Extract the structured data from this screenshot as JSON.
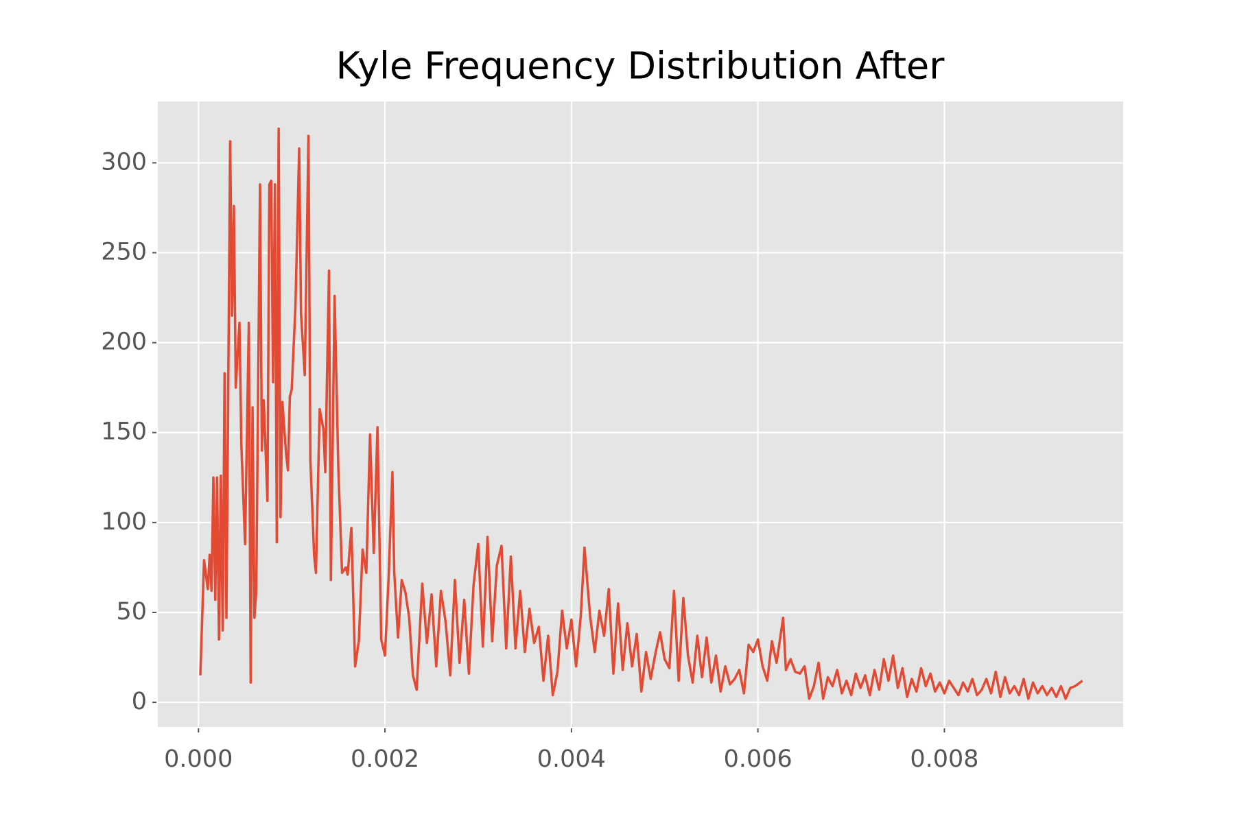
{
  "chart_data": {
    "type": "line",
    "title": "Kyle Frequency Distribution After",
    "color": "#e24a33",
    "background": "#e5e5e5",
    "grid": true,
    "x": [
      2e-05,
      6e-05,
      0.0001,
      0.00012,
      0.00014,
      0.00016,
      0.00018,
      0.0002,
      0.00022,
      0.00024,
      0.00026,
      0.00028,
      0.0003,
      0.00034,
      0.00036,
      0.00038,
      0.0004,
      0.00044,
      0.00046,
      0.0005,
      0.00054,
      0.00056,
      0.00058,
      0.0006,
      0.00062,
      0.00066,
      0.00068,
      0.0007,
      0.00074,
      0.00076,
      0.00078,
      0.0008,
      0.00082,
      0.00084,
      0.00086,
      0.00088,
      0.0009,
      0.00094,
      0.00096,
      0.00098,
      0.001,
      0.00104,
      0.00108,
      0.0011,
      0.00114,
      0.00118,
      0.0012,
      0.00124,
      0.00126,
      0.0013,
      0.00134,
      0.00136,
      0.0014,
      0.00142,
      0.00146,
      0.0015,
      0.00154,
      0.00158,
      0.0016,
      0.00164,
      0.00168,
      0.00172,
      0.00176,
      0.0018,
      0.00184,
      0.00188,
      0.00192,
      0.00196,
      0.002,
      0.00204,
      0.00208,
      0.0021,
      0.00214,
      0.00218,
      0.00222,
      0.00226,
      0.0023,
      0.00234,
      0.0024,
      0.00245,
      0.0025,
      0.00255,
      0.0026,
      0.00265,
      0.0027,
      0.00275,
      0.0028,
      0.00285,
      0.0029,
      0.00295,
      0.003,
      0.00305,
      0.0031,
      0.00315,
      0.0032,
      0.00325,
      0.0033,
      0.00335,
      0.0034,
      0.00345,
      0.0035,
      0.00355,
      0.0036,
      0.00365,
      0.0037,
      0.00375,
      0.0038,
      0.00385,
      0.0039,
      0.00395,
      0.004,
      0.00405,
      0.0041,
      0.00414,
      0.0042,
      0.00425,
      0.0043,
      0.00435,
      0.0044,
      0.00445,
      0.0045,
      0.00455,
      0.0046,
      0.00465,
      0.0047,
      0.00475,
      0.0048,
      0.00485,
      0.0049,
      0.00495,
      0.005,
      0.00505,
      0.0051,
      0.00515,
      0.0052,
      0.00525,
      0.0053,
      0.00535,
      0.0054,
      0.00545,
      0.0055,
      0.00555,
      0.0056,
      0.00565,
      0.0057,
      0.00575,
      0.0058,
      0.00585,
      0.0059,
      0.00595,
      0.006,
      0.00605,
      0.0061,
      0.00615,
      0.0062,
      0.00627,
      0.0063,
      0.00635,
      0.0064,
      0.00645,
      0.0065,
      0.00655,
      0.0066,
      0.00665,
      0.0067,
      0.00675,
      0.0068,
      0.00685,
      0.0069,
      0.00695,
      0.007,
      0.00705,
      0.0071,
      0.00715,
      0.0072,
      0.00725,
      0.0073,
      0.00735,
      0.0074,
      0.00745,
      0.0075,
      0.00755,
      0.0076,
      0.00765,
      0.0077,
      0.00775,
      0.0078,
      0.00785,
      0.0079,
      0.00795,
      0.008,
      0.00805,
      0.0081,
      0.00815,
      0.0082,
      0.00825,
      0.0083,
      0.00835,
      0.0084,
      0.00845,
      0.0085,
      0.00855,
      0.0086,
      0.00865,
      0.0087,
      0.00875,
      0.0088,
      0.00885,
      0.0089,
      0.00895,
      0.009,
      0.00905,
      0.0091,
      0.00915,
      0.0092,
      0.00925,
      0.0093,
      0.00935,
      0.0094,
      0.00948
    ],
    "values": [
      15,
      79,
      63,
      82,
      62,
      125,
      57,
      125,
      35,
      126,
      40,
      183,
      47,
      312,
      215,
      276,
      175,
      211,
      143,
      88,
      211,
      11,
      164,
      47,
      62,
      288,
      140,
      168,
      112,
      288,
      290,
      178,
      288,
      89,
      319,
      103,
      167,
      138,
      129,
      170,
      174,
      220,
      308,
      216,
      182,
      315,
      135,
      82,
      72,
      163,
      152,
      128,
      240,
      68,
      226,
      130,
      72,
      75,
      71,
      97,
      20,
      34,
      85,
      72,
      149,
      83,
      153,
      35,
      26,
      70,
      128,
      72,
      36,
      68,
      61,
      47,
      15,
      7,
      66,
      33,
      60,
      20,
      62,
      45,
      15,
      68,
      22,
      57,
      16,
      65,
      88,
      31,
      92,
      34,
      76,
      87,
      30,
      81,
      30,
      62,
      28,
      52,
      33,
      42,
      12,
      37,
      4,
      17,
      51,
      30,
      46,
      20,
      48,
      86,
      48,
      28,
      51,
      37,
      63,
      16,
      55,
      18,
      44,
      20,
      38,
      6,
      28,
      13,
      27,
      39,
      24,
      19,
      62,
      12,
      58,
      26,
      11,
      37,
      14,
      36,
      11,
      26,
      6,
      20,
      10,
      13,
      18,
      5,
      32,
      28,
      35,
      20,
      12,
      34,
      22,
      47,
      18,
      24,
      17,
      16,
      20,
      2,
      9,
      22,
      2,
      14,
      9,
      18,
      5,
      12,
      4,
      16,
      8,
      15,
      4,
      18,
      7,
      24,
      12,
      26,
      8,
      19,
      3,
      13,
      6,
      19,
      9,
      16,
      6,
      11,
      5,
      12,
      8,
      4,
      11,
      6,
      13,
      4,
      7,
      13,
      5,
      17,
      3,
      14,
      5,
      9,
      4,
      13,
      2,
      11,
      5,
      9,
      4,
      8,
      3,
      9,
      2,
      8,
      9,
      12
    ],
    "xlim": [
      -0.000436,
      0.009917
    ],
    "xticks": [
      {
        "value": 0,
        "label": "0.000"
      },
      0.002,
      0.004,
      0.006,
      0.008
    ],
    "ylim": [
      -13.7,
      334.1
    ],
    "yticks": [
      0,
      50,
      100,
      150,
      200,
      250,
      300
    ]
  }
}
